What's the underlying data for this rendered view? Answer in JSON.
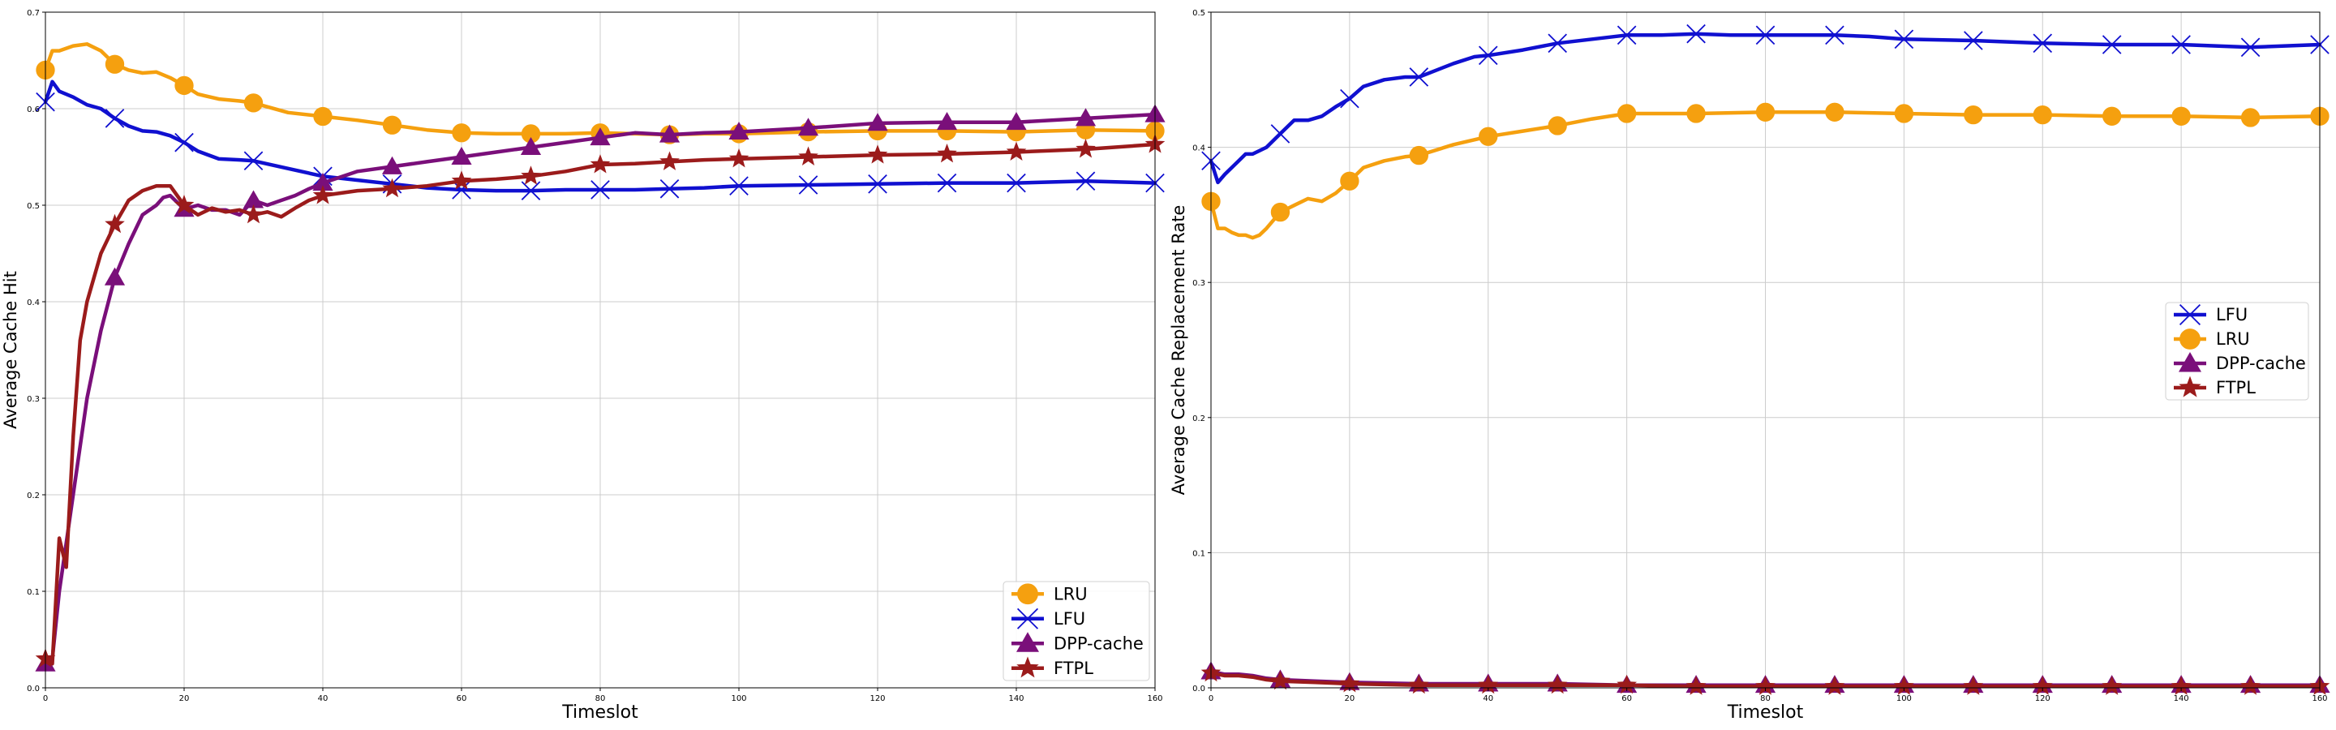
{
  "chart_data": [
    {
      "type": "line",
      "title": "",
      "xlabel": "Timeslot",
      "ylabel": "Average Cache Hit",
      "xlim": [
        0,
        160
      ],
      "ylim": [
        0,
        0.7
      ],
      "xticks": [
        "0",
        "20",
        "40",
        "60",
        "80",
        "100",
        "120",
        "140",
        "160"
      ],
      "yticks": [
        "0.0",
        "0.1",
        "0.2",
        "0.3",
        "0.4",
        "0.5",
        "0.6",
        "0.7"
      ],
      "grid": true,
      "legend_position": "bottom-right",
      "series": [
        {
          "name": "LRU",
          "color": "#f5a00f",
          "marker": "circle",
          "x": [
            0,
            1,
            2,
            4,
            6,
            8,
            10,
            12,
            14,
            16,
            18,
            20,
            22,
            25,
            28,
            30,
            35,
            40,
            45,
            50,
            55,
            60,
            65,
            70,
            75,
            80,
            85,
            90,
            95,
            100,
            110,
            120,
            130,
            140,
            150,
            160
          ],
          "y": [
            0.64,
            0.66,
            0.66,
            0.665,
            0.667,
            0.66,
            0.646,
            0.64,
            0.637,
            0.638,
            0.632,
            0.624,
            0.615,
            0.61,
            0.608,
            0.606,
            0.596,
            0.592,
            0.588,
            0.583,
            0.578,
            0.575,
            0.574,
            0.574,
            0.574,
            0.575,
            0.574,
            0.573,
            0.574,
            0.574,
            0.576,
            0.577,
            0.577,
            0.576,
            0.578,
            0.577
          ]
        },
        {
          "name": "LFU",
          "color": "#1010d0",
          "marker": "x",
          "x": [
            0,
            1,
            2,
            4,
            6,
            8,
            10,
            12,
            14,
            16,
            18,
            20,
            22,
            25,
            28,
            30,
            35,
            40,
            45,
            50,
            55,
            60,
            65,
            70,
            75,
            80,
            85,
            90,
            95,
            100,
            110,
            120,
            130,
            140,
            150,
            160
          ],
          "y": [
            0.607,
            0.628,
            0.618,
            0.612,
            0.604,
            0.6,
            0.59,
            0.582,
            0.577,
            0.576,
            0.572,
            0.565,
            0.556,
            0.548,
            0.547,
            0.546,
            0.538,
            0.53,
            0.526,
            0.522,
            0.518,
            0.516,
            0.515,
            0.515,
            0.516,
            0.516,
            0.516,
            0.517,
            0.518,
            0.52,
            0.521,
            0.522,
            0.523,
            0.523,
            0.525,
            0.523
          ]
        },
        {
          "name": "DPP-cache",
          "color": "#7a0f7a",
          "marker": "triangle",
          "x": [
            0,
            1,
            2,
            3,
            4,
            6,
            8,
            10,
            12,
            14,
            16,
            17,
            18,
            20,
            22,
            24,
            26,
            28,
            30,
            32,
            34,
            36,
            38,
            40,
            45,
            50,
            55,
            60,
            65,
            70,
            75,
            80,
            85,
            90,
            95,
            100,
            110,
            120,
            130,
            140,
            150,
            160
          ],
          "y": [
            0.025,
            0.03,
            0.1,
            0.15,
            0.2,
            0.3,
            0.37,
            0.425,
            0.46,
            0.49,
            0.5,
            0.508,
            0.51,
            0.496,
            0.5,
            0.495,
            0.495,
            0.49,
            0.505,
            0.5,
            0.505,
            0.51,
            0.517,
            0.523,
            0.535,
            0.54,
            0.545,
            0.55,
            0.555,
            0.56,
            0.565,
            0.57,
            0.575,
            0.573,
            0.575,
            0.576,
            0.58,
            0.585,
            0.586,
            0.586,
            0.59,
            0.594
          ]
        },
        {
          "name": "FTPL",
          "color": "#9b1b1b",
          "marker": "star",
          "x": [
            0,
            1,
            2,
            3,
            4,
            5,
            6,
            8,
            10,
            12,
            14,
            16,
            18,
            20,
            22,
            24,
            26,
            28,
            30,
            32,
            34,
            36,
            38,
            40,
            45,
            50,
            55,
            60,
            65,
            70,
            75,
            80,
            85,
            90,
            95,
            100,
            110,
            120,
            130,
            140,
            150,
            160
          ],
          "y": [
            0.03,
            0.025,
            0.155,
            0.125,
            0.26,
            0.36,
            0.4,
            0.45,
            0.48,
            0.505,
            0.515,
            0.52,
            0.52,
            0.5,
            0.49,
            0.497,
            0.493,
            0.495,
            0.49,
            0.493,
            0.488,
            0.497,
            0.505,
            0.51,
            0.515,
            0.517,
            0.52,
            0.525,
            0.527,
            0.53,
            0.535,
            0.542,
            0.543,
            0.545,
            0.547,
            0.548,
            0.55,
            0.552,
            0.553,
            0.555,
            0.558,
            0.563
          ]
        }
      ]
    },
    {
      "type": "line",
      "title": "",
      "xlabel": "Timeslot",
      "ylabel": "Average Cache Replacement Rate",
      "xlim": [
        0,
        160
      ],
      "ylim": [
        0,
        0.5
      ],
      "xticks": [
        "0",
        "20",
        "40",
        "60",
        "80",
        "100",
        "120",
        "140",
        "160"
      ],
      "yticks": [
        "0.0",
        "0.1",
        "0.2",
        "0.3",
        "0.4",
        "0.5"
      ],
      "grid": true,
      "legend_position": "center-right",
      "series": [
        {
          "name": "LFU",
          "color": "#1010d0",
          "marker": "x",
          "x": [
            0,
            1,
            2,
            3,
            4,
            5,
            6,
            8,
            10,
            12,
            14,
            16,
            18,
            20,
            22,
            25,
            28,
            30,
            32,
            35,
            38,
            40,
            45,
            50,
            55,
            60,
            65,
            70,
            75,
            80,
            85,
            90,
            95,
            100,
            110,
            120,
            130,
            140,
            150,
            160
          ],
          "y": [
            0.39,
            0.374,
            0.38,
            0.385,
            0.39,
            0.395,
            0.395,
            0.4,
            0.41,
            0.42,
            0.42,
            0.423,
            0.43,
            0.436,
            0.445,
            0.45,
            0.452,
            0.452,
            0.456,
            0.462,
            0.467,
            0.468,
            0.472,
            0.477,
            0.48,
            0.483,
            0.483,
            0.484,
            0.483,
            0.483,
            0.483,
            0.483,
            0.482,
            0.48,
            0.479,
            0.477,
            0.476,
            0.476,
            0.474,
            0.476
          ]
        },
        {
          "name": "LRU",
          "color": "#f5a00f",
          "marker": "circle",
          "x": [
            0,
            1,
            2,
            3,
            4,
            5,
            6,
            7,
            8,
            10,
            12,
            14,
            16,
            18,
            20,
            22,
            25,
            28,
            30,
            35,
            40,
            45,
            50,
            55,
            60,
            65,
            70,
            80,
            90,
            100,
            110,
            120,
            130,
            140,
            150,
            160
          ],
          "y": [
            0.36,
            0.34,
            0.34,
            0.337,
            0.335,
            0.335,
            0.333,
            0.335,
            0.34,
            0.352,
            0.357,
            0.362,
            0.36,
            0.366,
            0.375,
            0.385,
            0.39,
            0.393,
            0.394,
            0.402,
            0.408,
            0.412,
            0.416,
            0.421,
            0.425,
            0.425,
            0.425,
            0.426,
            0.426,
            0.425,
            0.424,
            0.424,
            0.423,
            0.423,
            0.422,
            0.423
          ]
        },
        {
          "name": "DPP-cache",
          "color": "#7a0f7a",
          "marker": "triangle",
          "x": [
            0,
            2,
            4,
            6,
            8,
            10,
            15,
            20,
            30,
            40,
            50,
            60,
            70,
            80,
            90,
            100,
            110,
            120,
            130,
            140,
            150,
            160
          ],
          "y": [
            0.012,
            0.01,
            0.01,
            0.009,
            0.007,
            0.006,
            0.005,
            0.004,
            0.003,
            0.003,
            0.003,
            0.002,
            0.002,
            0.002,
            0.002,
            0.002,
            0.002,
            0.002,
            0.002,
            0.002,
            0.002,
            0.002
          ]
        },
        {
          "name": "FTPL",
          "color": "#9b1b1b",
          "marker": "star",
          "x": [
            0,
            2,
            4,
            6,
            8,
            10,
            15,
            20,
            30,
            40,
            50,
            60,
            70,
            80,
            90,
            100,
            110,
            120,
            130,
            140,
            150,
            160
          ],
          "y": [
            0.011,
            0.009,
            0.009,
            0.008,
            0.006,
            0.005,
            0.004,
            0.003,
            0.002,
            0.002,
            0.002,
            0.002,
            0.001,
            0.001,
            0.001,
            0.001,
            0.001,
            0.001,
            0.001,
            0.001,
            0.001,
            0.001
          ]
        }
      ]
    }
  ]
}
